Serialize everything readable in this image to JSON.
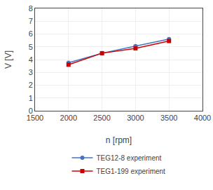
{
  "chart_data": {
    "type": "line",
    "xlabel": "n [rpm]",
    "ylabel": "V [V]",
    "x": [
      2000,
      2500,
      3000,
      3500
    ],
    "series": [
      {
        "name": "TEG12-8 experiment",
        "color": "#4472C4",
        "marker": "circle",
        "values": [
          3.75,
          4.5,
          5.05,
          5.6
        ]
      },
      {
        "name": "TEG1-199 experiment",
        "color": "#CC0000",
        "marker": "square",
        "values": [
          3.6,
          4.5,
          4.88,
          5.45
        ]
      }
    ],
    "xlim": [
      1500,
      4000
    ],
    "ylim": [
      0,
      8
    ],
    "xticks": [
      1500,
      2000,
      2500,
      3000,
      3500,
      4000
    ],
    "yticks": [
      0,
      1,
      2,
      3,
      4,
      5,
      6,
      7,
      8
    ],
    "grid": true,
    "legend": "bottom"
  }
}
